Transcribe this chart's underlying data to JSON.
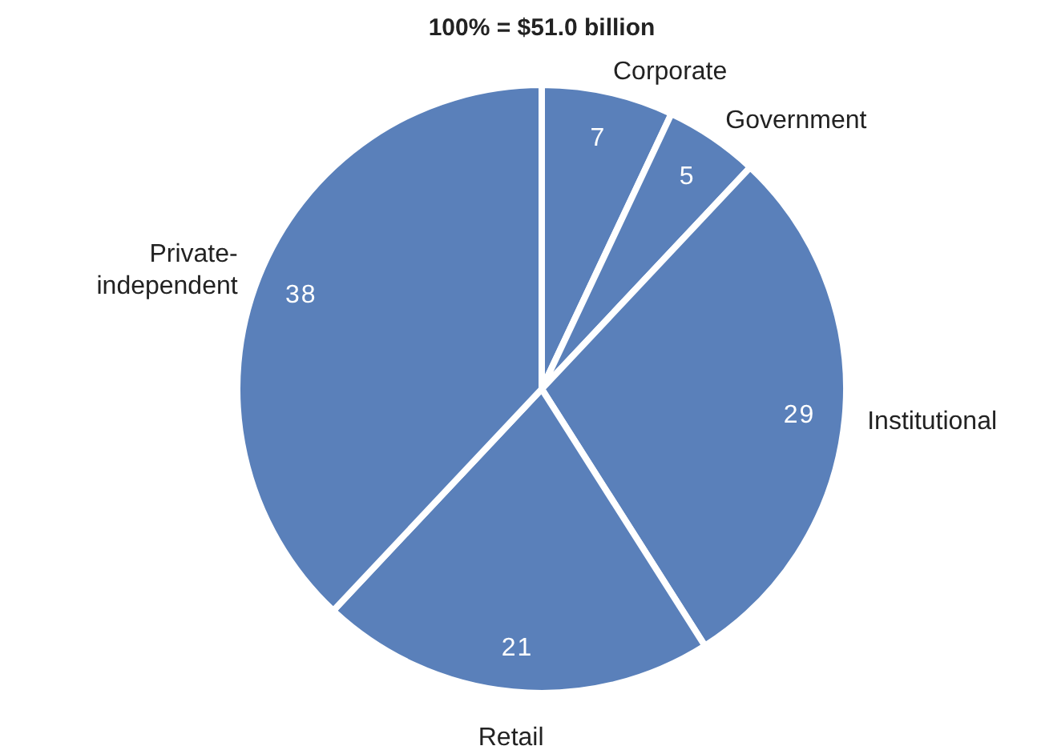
{
  "chart_data": {
    "type": "pie",
    "title": "100% = $51.0 billion",
    "categories": [
      "Corporate",
      "Government",
      "Institutional",
      "Retail",
      "Private-independent"
    ],
    "values": [
      7,
      5,
      29,
      21,
      38
    ],
    "colors": [
      "#5a80ba",
      "#5a80ba",
      "#5a80ba",
      "#5a80ba",
      "#5a80ba"
    ],
    "data_labels": true
  }
}
